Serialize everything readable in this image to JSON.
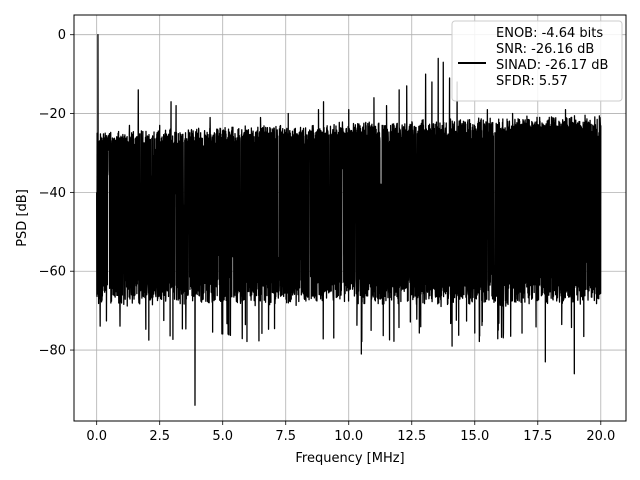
{
  "chart_data": {
    "type": "line",
    "title": "",
    "xlabel": "Frequency [MHz]",
    "ylabel": "PSD [dB]",
    "xlim": [
      -0.9,
      21.0
    ],
    "ylim": [
      -98,
      5
    ],
    "x_ticks": [
      0.0,
      2.5,
      5.0,
      7.5,
      10.0,
      12.5,
      15.0,
      17.5,
      20.0
    ],
    "x_tick_labels": [
      "0.0",
      "2.5",
      "5.0",
      "7.5",
      "10.0",
      "12.5",
      "15.0",
      "17.5",
      "20.0"
    ],
    "y_ticks": [
      0,
      -20,
      -40,
      -60,
      -80
    ],
    "y_tick_labels": [
      "0",
      "−20",
      "−40",
      "−60",
      "−80"
    ],
    "grid": true,
    "legend_position": "top-right",
    "legend": [
      "ENOB: -4.64 bits",
      "SNR: -26.16 dB",
      "SINAD: -26.17 dB",
      "SFDR: 5.57"
    ],
    "series": [
      {
        "color": "#000000",
        "style": "dense noise spectrum",
        "x_range": [
          0.0,
          20.0
        ],
        "points": [
          {
            "x": 0.0,
            "y": -40
          },
          {
            "x": 0.02,
            "y": -25
          },
          {
            "x": 0.05,
            "y": 0
          },
          {
            "x": 0.08,
            "y": -30
          },
          {
            "x": 1.3,
            "y": -23
          },
          {
            "x": 1.65,
            "y": -14
          },
          {
            "x": 2.5,
            "y": -23
          },
          {
            "x": 2.95,
            "y": -17
          },
          {
            "x": 3.15,
            "y": -18
          },
          {
            "x": 3.9,
            "y": -94
          },
          {
            "x": 4.5,
            "y": -21
          },
          {
            "x": 6.5,
            "y": -21
          },
          {
            "x": 7.6,
            "y": -20
          },
          {
            "x": 8.8,
            "y": -19
          },
          {
            "x": 9.0,
            "y": -17
          },
          {
            "x": 10.0,
            "y": -19
          },
          {
            "x": 10.5,
            "y": -81
          },
          {
            "x": 11.0,
            "y": -16
          },
          {
            "x": 11.5,
            "y": -18
          },
          {
            "x": 12.0,
            "y": -14
          },
          {
            "x": 12.3,
            "y": -13
          },
          {
            "x": 13.05,
            "y": -10
          },
          {
            "x": 13.3,
            "y": -12
          },
          {
            "x": 13.55,
            "y": -6
          },
          {
            "x": 13.75,
            "y": -7
          },
          {
            "x": 14.0,
            "y": -11
          },
          {
            "x": 14.3,
            "y": -12
          },
          {
            "x": 14.1,
            "y": -79
          },
          {
            "x": 15.5,
            "y": -19
          },
          {
            "x": 16.5,
            "y": -20
          },
          {
            "x": 17.8,
            "y": -83
          },
          {
            "x": 18.6,
            "y": -19
          },
          {
            "x": 18.95,
            "y": -86
          },
          {
            "x": 20.0,
            "y": -23
          }
        ]
      }
    ]
  }
}
